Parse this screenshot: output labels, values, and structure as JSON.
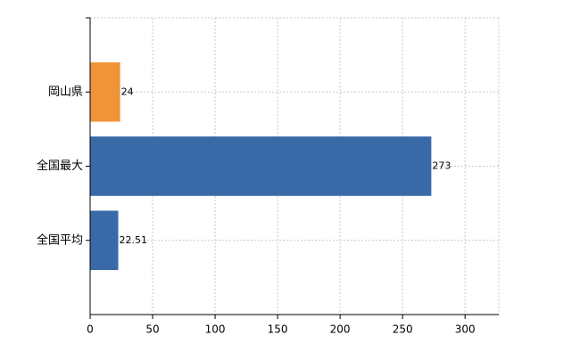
{
  "chart_data": {
    "type": "bar",
    "orientation": "horizontal",
    "categories": [
      "岡山県",
      "全国最大",
      "全国平均"
    ],
    "values": [
      24,
      273,
      22.51
    ],
    "colors": [
      "#f0943a",
      "#3a69a8",
      "#3a69a8"
    ],
    "xlim": [
      0,
      327
    ],
    "xticks": [
      0,
      50,
      100,
      150,
      200,
      250,
      300
    ],
    "grid": true
  }
}
